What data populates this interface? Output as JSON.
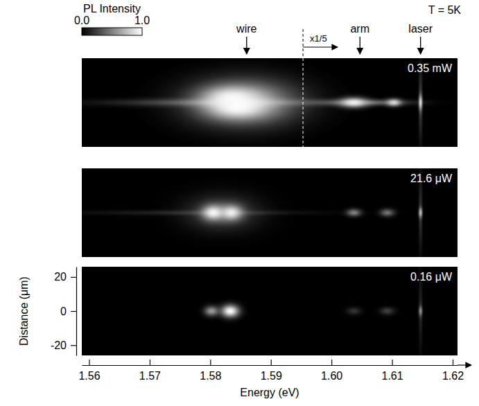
{
  "chart_data": {
    "type": "image_map",
    "xlabel": "Energy (eV)",
    "ylabel": "Distance (μm)",
    "xlim": [
      1.5588,
      1.6208
    ],
    "xticks": [
      1.56,
      1.57,
      1.58,
      1.59,
      {
        "value": 1.6,
        "label": "1.60"
      },
      1.61,
      1.62
    ],
    "ylim": [
      -26,
      26
    ],
    "yticks": [
      20,
      0,
      -20
    ],
    "colorbar": {
      "title": "PL Intensity",
      "range": [
        0,
        1
      ],
      "ticks": [
        {
          "value": 0,
          "label": "0.0"
        },
        {
          "value": 1,
          "label": "1.0"
        }
      ]
    },
    "temperature_label": "T = 5K",
    "annotations": [
      {
        "label": "wire",
        "energy": 1.586
      },
      {
        "label": "arm",
        "energy": 1.6047
      },
      {
        "label": "laser",
        "energy": 1.6147
      }
    ],
    "scale_marker": {
      "label": "x1/5",
      "energy": 1.5953
    },
    "panels": [
      {
        "label": "0.35 mW",
        "spots": [
          {
            "energy": 1.582,
            "distance": 0,
            "energy_width": 0.012,
            "distance_width": 1.5,
            "intensity": 0.35
          },
          {
            "energy": 1.5855,
            "distance": 0,
            "energy_width": 0.006,
            "distance_width": 9,
            "intensity": 0.75
          },
          {
            "energy": 1.5835,
            "distance": 3,
            "energy_width": 0.003,
            "distance_width": 4,
            "intensity": 0.9
          },
          {
            "energy": 1.5845,
            "distance": -3,
            "energy_width": 0.003,
            "distance_width": 4,
            "intensity": 0.95
          },
          {
            "energy": 1.6055,
            "distance": 0,
            "energy_width": 0.005,
            "distance_width": 1.2,
            "intensity": 0.4
          },
          {
            "energy": 1.6037,
            "distance": 0,
            "energy_width": 0.0015,
            "distance_width": 2,
            "intensity": 0.9
          },
          {
            "energy": 1.6103,
            "distance": 0,
            "energy_width": 0.0008,
            "distance_width": 1.5,
            "intensity": 0.8
          },
          {
            "energy": 1.6147,
            "distance": 0,
            "energy_width": 0.0002,
            "distance_width": 3,
            "intensity": 0.8
          },
          {
            "energy": 1.6147,
            "distance": 0,
            "energy_width": 0.0002,
            "distance_width": 15,
            "intensity": 0.25
          }
        ]
      },
      {
        "label": "21.6 μW",
        "spots": [
          {
            "energy": 1.578,
            "distance": 0,
            "energy_width": 0.012,
            "distance_width": 1,
            "intensity": 0.15
          },
          {
            "energy": 1.582,
            "distance": 0,
            "energy_width": 0.004,
            "distance_width": 7,
            "intensity": 0.3
          },
          {
            "energy": 1.5805,
            "distance": 0,
            "energy_width": 0.0012,
            "distance_width": 3,
            "intensity": 0.95
          },
          {
            "energy": 1.5835,
            "distance": 0,
            "energy_width": 0.0012,
            "distance_width": 3,
            "intensity": 0.9
          },
          {
            "energy": 1.6037,
            "distance": 0,
            "energy_width": 0.0008,
            "distance_width": 1.5,
            "intensity": 0.5
          },
          {
            "energy": 1.6092,
            "distance": 0,
            "energy_width": 0.0008,
            "distance_width": 1.5,
            "intensity": 0.45
          },
          {
            "energy": 1.6147,
            "distance": 0,
            "energy_width": 0.0002,
            "distance_width": 2,
            "intensity": 0.7
          },
          {
            "energy": 1.6147,
            "distance": 0,
            "energy_width": 0.0002,
            "distance_width": 15,
            "intensity": 0.2
          }
        ]
      },
      {
        "label": "0.16 μW",
        "spots": [
          {
            "energy": 1.5802,
            "distance": 0,
            "energy_width": 0.0008,
            "distance_width": 2,
            "intensity": 0.6
          },
          {
            "energy": 1.5833,
            "distance": 0,
            "energy_width": 0.001,
            "distance_width": 2.5,
            "intensity": 1.0
          },
          {
            "energy": 1.6037,
            "distance": 0,
            "energy_width": 0.0008,
            "distance_width": 1.5,
            "intensity": 0.2
          },
          {
            "energy": 1.6092,
            "distance": 0,
            "energy_width": 0.0008,
            "distance_width": 1.5,
            "intensity": 0.25
          },
          {
            "energy": 1.6147,
            "distance": 0,
            "energy_width": 0.0002,
            "distance_width": 2,
            "intensity": 0.5
          },
          {
            "energy": 1.6147,
            "distance": 0,
            "energy_width": 0.0002,
            "distance_width": 15,
            "intensity": 0.15
          }
        ]
      }
    ]
  }
}
